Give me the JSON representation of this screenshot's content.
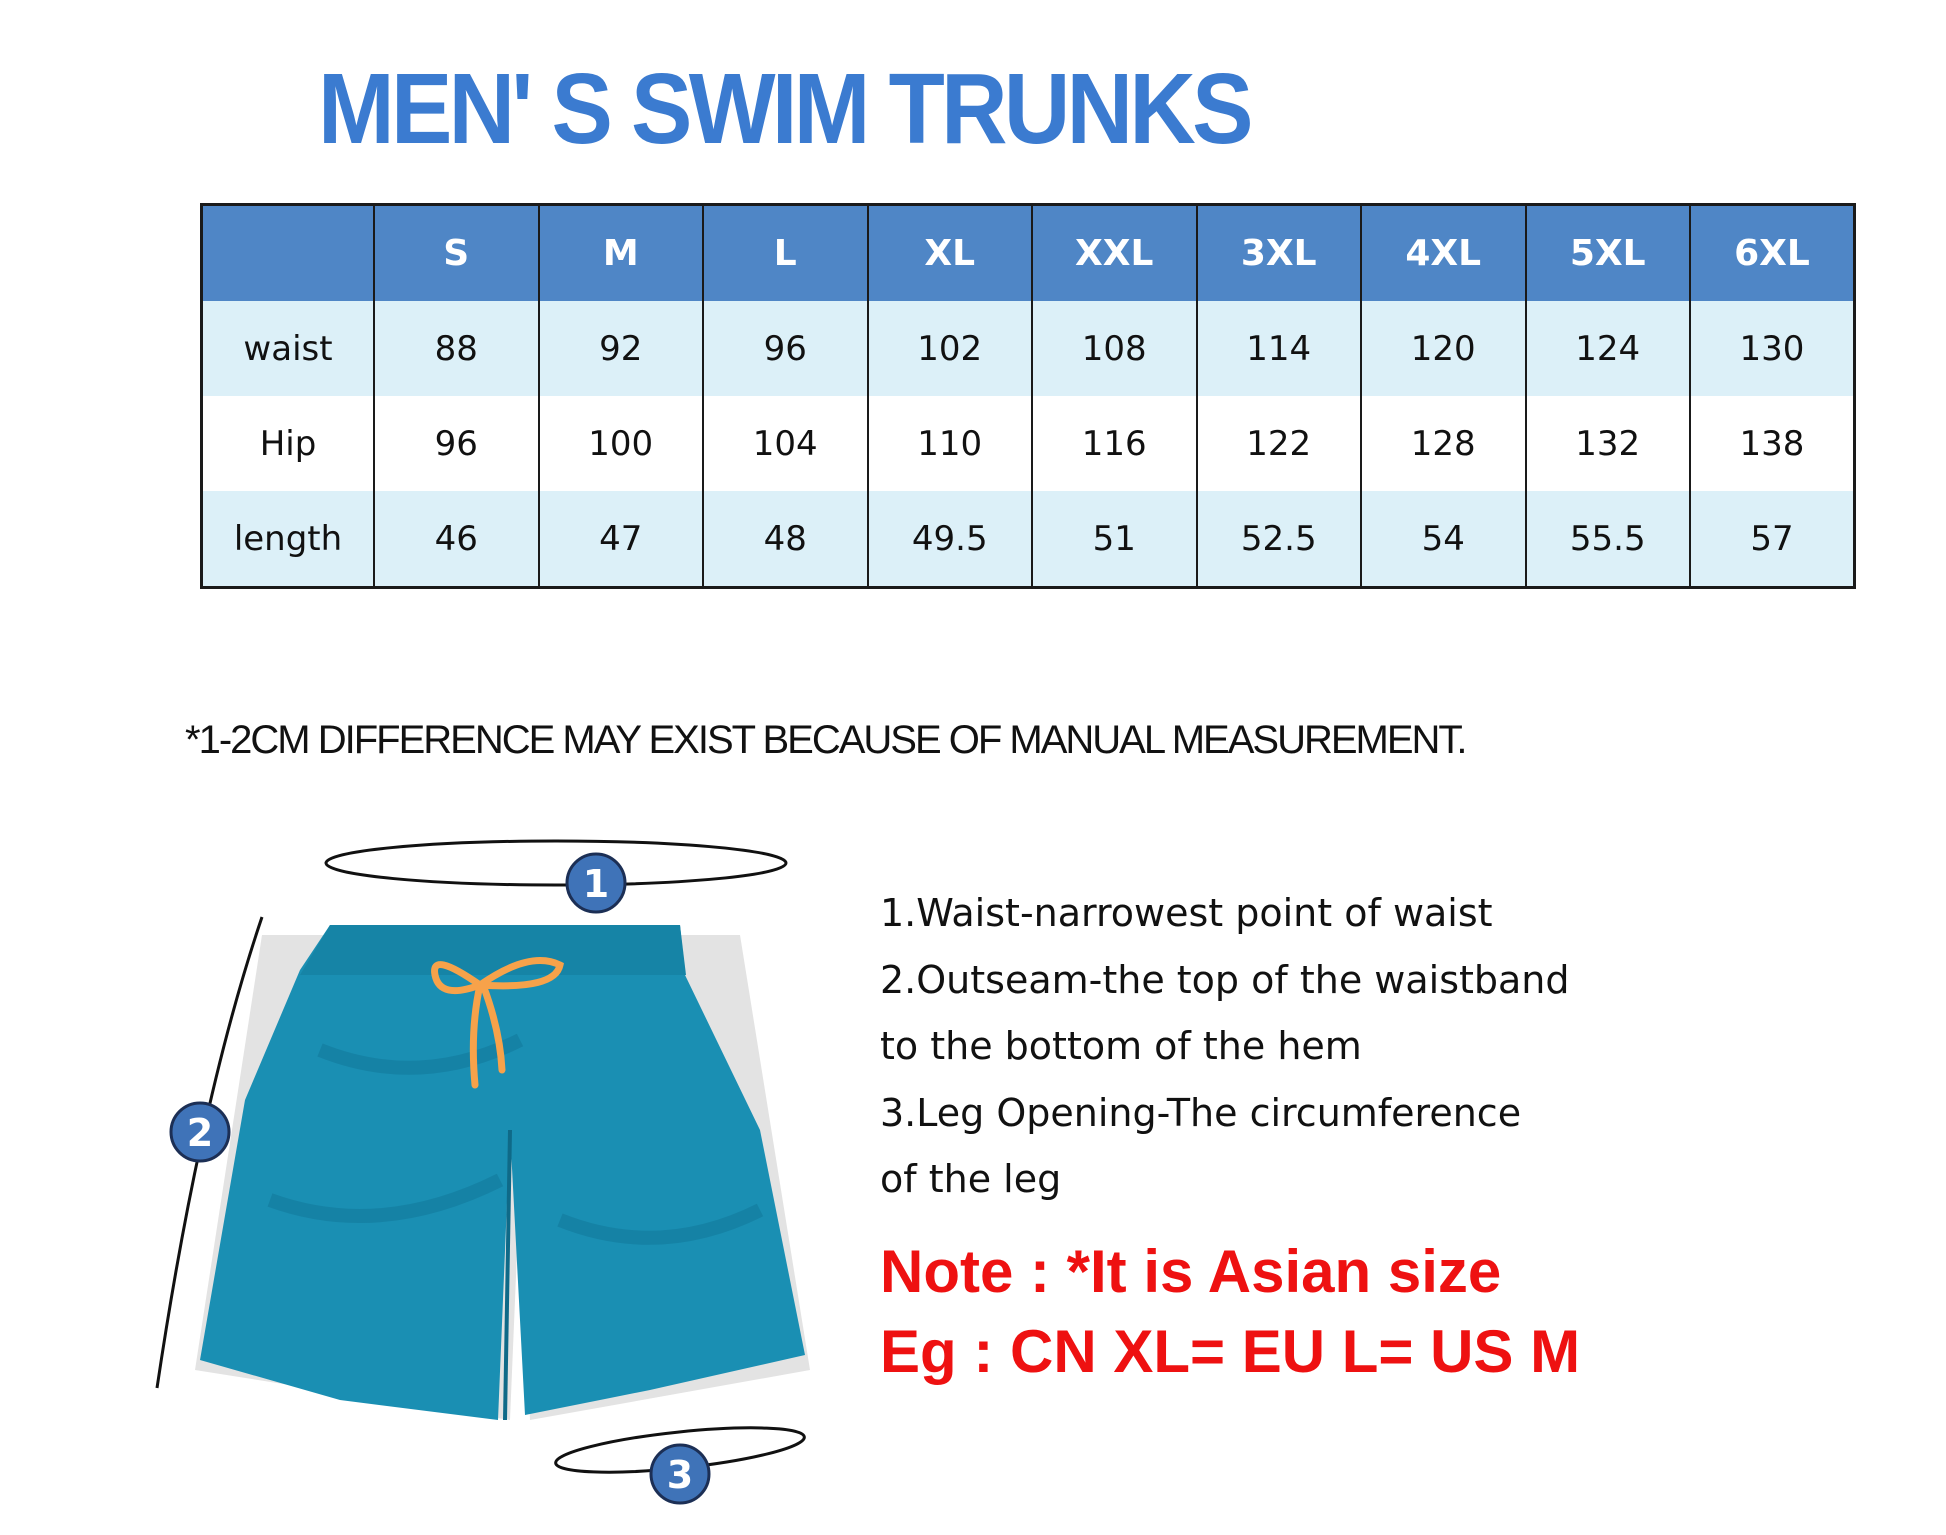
{
  "title": "MEN' S SWIM TRUNKS",
  "table": {
    "headers": [
      "",
      "S",
      "M",
      "L",
      "XL",
      "XXL",
      "3XL",
      "4XL",
      "5XL",
      "6XL"
    ],
    "rows": [
      {
        "label": "waist",
        "values": [
          "88",
          "92",
          "96",
          "102",
          "108",
          "114",
          "120",
          "124",
          "130"
        ]
      },
      {
        "label": "Hip",
        "values": [
          "96",
          "100",
          "104",
          "110",
          "116",
          "122",
          "128",
          "132",
          "138"
        ]
      },
      {
        "label": "length",
        "values": [
          "46",
          "47",
          "48",
          "49.5",
          "51",
          "52.5",
          "54",
          "55.5",
          "57"
        ]
      }
    ]
  },
  "disclaimer": "*1-2CM DIFFERENCE MAY EXIST BECAUSE OF MANUAL MEASUREMENT.",
  "markers": [
    "1",
    "2",
    "3"
  ],
  "instructions": [
    "1.Waist-narrowest point of waist",
    "2.Outseam-the top of the waistband",
    "to the bottom of the hem",
    "3.Leg Opening-The circumference",
    "of the leg"
  ],
  "note": {
    "line1": "Note : *It is Asian size",
    "line2": "Eg : CN XL= EU L= US M"
  },
  "colors": {
    "title": "#3b7bd0",
    "header": "#4f86c6",
    "row_alt": "#dcf0f8",
    "note": "#ee1111",
    "shorts": "#1a8fb3",
    "drawstring": "#f7a24a"
  }
}
